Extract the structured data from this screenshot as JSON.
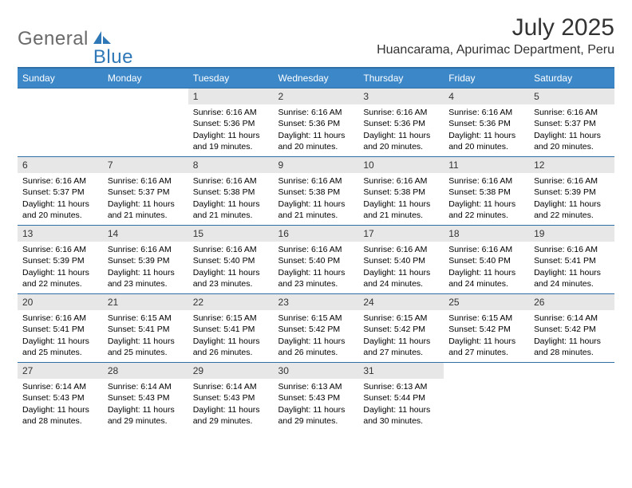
{
  "brand": {
    "word1": "General",
    "word2": "Blue"
  },
  "title": "July 2025",
  "location": "Huancarama, Apurimac Department, Peru",
  "colors": {
    "header_bg": "#3b87c8",
    "header_border": "#2f6fa8",
    "daynum_bg": "#e7e7e7",
    "page_bg": "#ffffff",
    "text": "#000000",
    "brand_gray": "#6a6a6a",
    "brand_blue": "#2f78b7"
  },
  "grid": {
    "columns": 7,
    "rows": 5,
    "week_start": "Sunday",
    "first_day_column_index": 2,
    "days_in_month": 31
  },
  "weekdays": [
    "Sunday",
    "Monday",
    "Tuesday",
    "Wednesday",
    "Thursday",
    "Friday",
    "Saturday"
  ],
  "labels": {
    "sunrise": "Sunrise:",
    "sunset": "Sunset:",
    "daylight_prefix": "Daylight:"
  },
  "days": {
    "1": {
      "sunrise": "6:16 AM",
      "sunset": "5:36 PM",
      "daylight": "11 hours and 19 minutes."
    },
    "2": {
      "sunrise": "6:16 AM",
      "sunset": "5:36 PM",
      "daylight": "11 hours and 20 minutes."
    },
    "3": {
      "sunrise": "6:16 AM",
      "sunset": "5:36 PM",
      "daylight": "11 hours and 20 minutes."
    },
    "4": {
      "sunrise": "6:16 AM",
      "sunset": "5:36 PM",
      "daylight": "11 hours and 20 minutes."
    },
    "5": {
      "sunrise": "6:16 AM",
      "sunset": "5:37 PM",
      "daylight": "11 hours and 20 minutes."
    },
    "6": {
      "sunrise": "6:16 AM",
      "sunset": "5:37 PM",
      "daylight": "11 hours and 20 minutes."
    },
    "7": {
      "sunrise": "6:16 AM",
      "sunset": "5:37 PM",
      "daylight": "11 hours and 21 minutes."
    },
    "8": {
      "sunrise": "6:16 AM",
      "sunset": "5:38 PM",
      "daylight": "11 hours and 21 minutes."
    },
    "9": {
      "sunrise": "6:16 AM",
      "sunset": "5:38 PM",
      "daylight": "11 hours and 21 minutes."
    },
    "10": {
      "sunrise": "6:16 AM",
      "sunset": "5:38 PM",
      "daylight": "11 hours and 21 minutes."
    },
    "11": {
      "sunrise": "6:16 AM",
      "sunset": "5:38 PM",
      "daylight": "11 hours and 22 minutes."
    },
    "12": {
      "sunrise": "6:16 AM",
      "sunset": "5:39 PM",
      "daylight": "11 hours and 22 minutes."
    },
    "13": {
      "sunrise": "6:16 AM",
      "sunset": "5:39 PM",
      "daylight": "11 hours and 22 minutes."
    },
    "14": {
      "sunrise": "6:16 AM",
      "sunset": "5:39 PM",
      "daylight": "11 hours and 23 minutes."
    },
    "15": {
      "sunrise": "6:16 AM",
      "sunset": "5:40 PM",
      "daylight": "11 hours and 23 minutes."
    },
    "16": {
      "sunrise": "6:16 AM",
      "sunset": "5:40 PM",
      "daylight": "11 hours and 23 minutes."
    },
    "17": {
      "sunrise": "6:16 AM",
      "sunset": "5:40 PM",
      "daylight": "11 hours and 24 minutes."
    },
    "18": {
      "sunrise": "6:16 AM",
      "sunset": "5:40 PM",
      "daylight": "11 hours and 24 minutes."
    },
    "19": {
      "sunrise": "6:16 AM",
      "sunset": "5:41 PM",
      "daylight": "11 hours and 24 minutes."
    },
    "20": {
      "sunrise": "6:16 AM",
      "sunset": "5:41 PM",
      "daylight": "11 hours and 25 minutes."
    },
    "21": {
      "sunrise": "6:15 AM",
      "sunset": "5:41 PM",
      "daylight": "11 hours and 25 minutes."
    },
    "22": {
      "sunrise": "6:15 AM",
      "sunset": "5:41 PM",
      "daylight": "11 hours and 26 minutes."
    },
    "23": {
      "sunrise": "6:15 AM",
      "sunset": "5:42 PM",
      "daylight": "11 hours and 26 minutes."
    },
    "24": {
      "sunrise": "6:15 AM",
      "sunset": "5:42 PM",
      "daylight": "11 hours and 27 minutes."
    },
    "25": {
      "sunrise": "6:15 AM",
      "sunset": "5:42 PM",
      "daylight": "11 hours and 27 minutes."
    },
    "26": {
      "sunrise": "6:14 AM",
      "sunset": "5:42 PM",
      "daylight": "11 hours and 28 minutes."
    },
    "27": {
      "sunrise": "6:14 AM",
      "sunset": "5:43 PM",
      "daylight": "11 hours and 28 minutes."
    },
    "28": {
      "sunrise": "6:14 AM",
      "sunset": "5:43 PM",
      "daylight": "11 hours and 29 minutes."
    },
    "29": {
      "sunrise": "6:14 AM",
      "sunset": "5:43 PM",
      "daylight": "11 hours and 29 minutes."
    },
    "30": {
      "sunrise": "6:13 AM",
      "sunset": "5:43 PM",
      "daylight": "11 hours and 29 minutes."
    },
    "31": {
      "sunrise": "6:13 AM",
      "sunset": "5:44 PM",
      "daylight": "11 hours and 30 minutes."
    }
  }
}
